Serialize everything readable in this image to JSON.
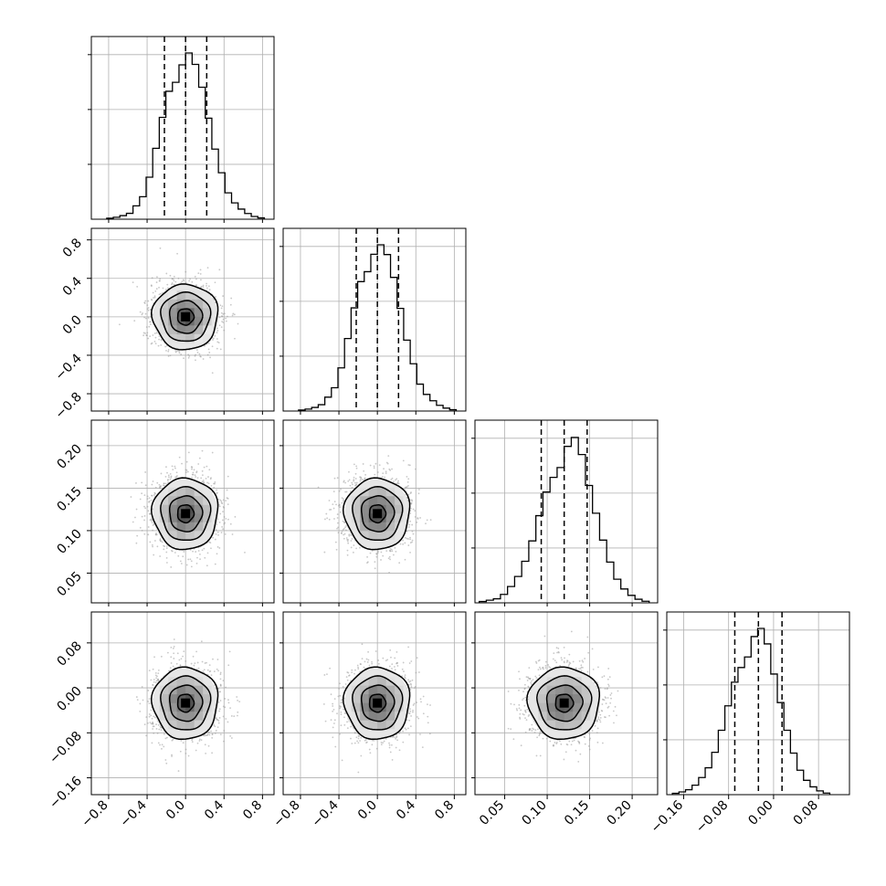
{
  "chart_data": {
    "type": "corner",
    "parameters": 4,
    "grid": true,
    "histograms": [
      {
        "parameter": 1,
        "bin_edges_range": [
          -0.82,
          0.82
        ],
        "counts": [
          0.6,
          1.2,
          2.2,
          3.6,
          8.2,
          13.8,
          25.8,
          43.5,
          62.5,
          78.5,
          84.0,
          94.7,
          102.0,
          95.0,
          81.0,
          62.0,
          43.0,
          28.5,
          16.2,
          10.0,
          6.2,
          3.5,
          1.7,
          0.8
        ],
        "quantiles": [
          -0.22,
          0.0,
          0.22
        ],
        "ylim": [
          0,
          102.0
        ]
      },
      {
        "parameter": 2,
        "bin_edges_range": [
          -0.82,
          0.82
        ],
        "counts": [
          0.6,
          1.2,
          2.2,
          3.9,
          8.5,
          14.3,
          26.5,
          44.5,
          63.3,
          79.4,
          85.5,
          96.2,
          102.0,
          96.0,
          82.0,
          63.0,
          43.5,
          29.0,
          16.5,
          10.2,
          6.3,
          3.5,
          1.8,
          0.8
        ],
        "quantiles": [
          -0.22,
          0.0,
          0.22
        ],
        "ylim": [
          0,
          102.0
        ]
      },
      {
        "parameter": 3,
        "bin_edges_range": [
          0.02,
          0.22
        ],
        "counts": [
          0.8,
          1.6,
          2.5,
          5.2,
          10.0,
          16.2,
          25.5,
          38.0,
          53.5,
          68.0,
          77.0,
          83.0,
          96.0,
          101.5,
          91.0,
          72.0,
          55.0,
          38.5,
          25.0,
          14.5,
          8.5,
          4.6,
          2.2,
          1.0
        ],
        "quantiles": [
          0.093,
          0.12,
          0.147
        ],
        "ylim": [
          0,
          102.0
        ]
      },
      {
        "parameter": 4,
        "bin_edges_range": [
          -0.18,
          0.1
        ],
        "counts": [
          0.8,
          1.7,
          3.0,
          5.8,
          10.5,
          16.5,
          26.0,
          39.5,
          54.5,
          69.0,
          78.0,
          84.5,
          97.0,
          102.0,
          92.5,
          74.0,
          56.5,
          39.5,
          25.5,
          15.0,
          8.8,
          4.8,
          2.3,
          1.0
        ],
        "quantiles": [
          -0.069,
          -0.027,
          0.015
        ],
        "ylim": [
          0,
          102.0
        ]
      }
    ],
    "axes": [
      {
        "parameter": 1,
        "range": [
          -0.98,
          0.92
        ],
        "ticks": [
          -0.8,
          -0.4,
          0.0,
          0.4,
          0.8
        ],
        "tick_labels": [
          "−0.8",
          "−0.4",
          "0.0",
          "0.4",
          "0.8"
        ]
      },
      {
        "parameter": 2,
        "range": [
          -0.98,
          0.92
        ],
        "ticks": [
          -0.8,
          -0.4,
          0.0,
          0.4,
          0.8
        ],
        "tick_labels": [
          "−0.8",
          "−0.4",
          "0.0",
          "0.4",
          "0.8"
        ]
      },
      {
        "parameter": 3,
        "range": [
          0.015,
          0.23
        ],
        "ticks": [
          0.05,
          0.1,
          0.15,
          0.2
        ],
        "tick_labels": [
          "0.05",
          "0.10",
          "0.15",
          "0.20"
        ]
      },
      {
        "parameter": 4,
        "range": [
          -0.19,
          0.135
        ],
        "ticks": [
          -0.16,
          -0.08,
          0.0,
          0.08
        ],
        "tick_labels": [
          "−0.16",
          "−0.08",
          "0.00",
          "0.08"
        ]
      }
    ],
    "pairs": [
      {
        "x_parameter": 1,
        "y_parameter": 2,
        "center": [
          0.0,
          0.0
        ],
        "sigma": [
          0.17,
          0.17
        ],
        "contour_levels_sigma": [
          0.5,
          1.0,
          1.5,
          2.0
        ]
      },
      {
        "x_parameter": 1,
        "y_parameter": 3,
        "center": [
          0.0,
          0.12
        ],
        "sigma": [
          0.17,
          0.021
        ],
        "contour_levels_sigma": [
          0.5,
          1.0,
          1.5,
          2.0
        ]
      },
      {
        "x_parameter": 2,
        "y_parameter": 3,
        "center": [
          0.0,
          0.12
        ],
        "sigma": [
          0.17,
          0.021
        ],
        "contour_levels_sigma": [
          0.5,
          1.0,
          1.5,
          2.0
        ]
      },
      {
        "x_parameter": 1,
        "y_parameter": 4,
        "center": [
          0.0,
          -0.027
        ],
        "sigma": [
          0.17,
          0.032
        ],
        "contour_levels_sigma": [
          0.5,
          1.0,
          1.5,
          2.0
        ]
      },
      {
        "x_parameter": 2,
        "y_parameter": 4,
        "center": [
          0.0,
          -0.027
        ],
        "sigma": [
          0.17,
          0.032
        ],
        "contour_levels_sigma": [
          0.5,
          1.0,
          1.5,
          2.0
        ]
      },
      {
        "x_parameter": 3,
        "y_parameter": 4,
        "center": [
          0.12,
          -0.027
        ],
        "sigma": [
          0.021,
          0.032
        ],
        "contour_levels_sigma": [
          0.5,
          1.0,
          1.5,
          2.0
        ]
      }
    ],
    "colors": {
      "line": "#000000",
      "grid": "#b0b0b0",
      "scatter": "#9a9a9a",
      "shading": [
        "#e6e6e6",
        "#bdbdbd",
        "#8e8e8e",
        "#5a5a5a",
        "#262626"
      ]
    }
  }
}
